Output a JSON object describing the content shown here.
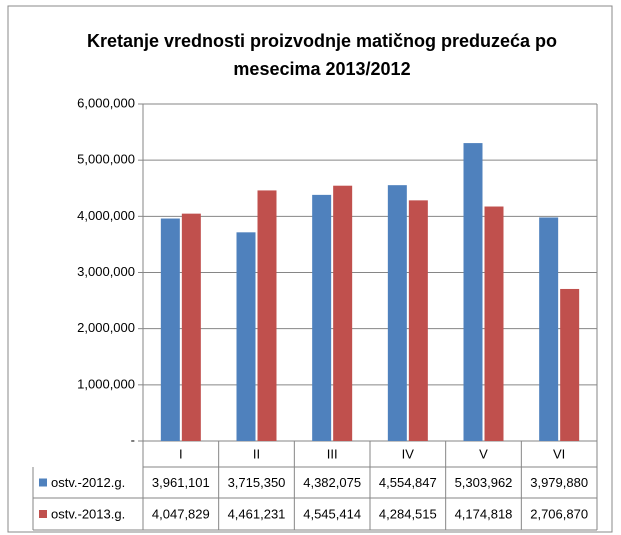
{
  "chart_data": {
    "type": "bar",
    "title": [
      "Kretanje vrednosti proizvodnje matičnog preduzeća po",
      "mesecima 2013/2012"
    ],
    "categories": [
      "I",
      "II",
      "III",
      "IV",
      "V",
      "VI"
    ],
    "series": [
      {
        "name": "ostv.-2012.g.",
        "color": "#4f81bd",
        "values": [
          3961101,
          3715350,
          4382075,
          4554847,
          5303962,
          3979880
        ],
        "value_labels": [
          "3,961,101",
          "3,715,350",
          "4,382,075",
          "4,554,847",
          "5,303,962",
          "3,979,880"
        ]
      },
      {
        "name": "ostv.-2013.g.",
        "color": "#c0504d",
        "values": [
          4047829,
          4461231,
          4545414,
          4284515,
          4174818,
          2706870
        ],
        "value_labels": [
          "4,047,829",
          "4,461,231",
          "4,545,414",
          "4,284,515",
          "4,174,818",
          "2,706,870"
        ]
      }
    ],
    "ylim": [
      0,
      6000000
    ],
    "yticks": [
      {
        "value": 0,
        "label": "-"
      },
      {
        "value": 1000000,
        "label": "1,000,000"
      },
      {
        "value": 2000000,
        "label": "2,000,000"
      },
      {
        "value": 3000000,
        "label": "3,000,000"
      },
      {
        "value": 4000000,
        "label": "4,000,000"
      },
      {
        "value": 5000000,
        "label": "5,000,000"
      },
      {
        "value": 6000000,
        "label": "6,000,000"
      }
    ],
    "grid": true
  }
}
